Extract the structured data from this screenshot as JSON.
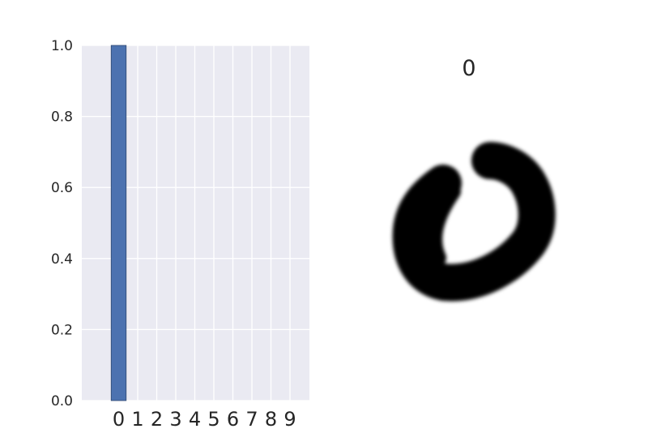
{
  "chart_data": [
    {
      "type": "bar",
      "categories": [
        "0",
        "1",
        "2",
        "3",
        "4",
        "5",
        "6",
        "7",
        "8",
        "9"
      ],
      "values": [
        1.0,
        0,
        0,
        0,
        0,
        0,
        0,
        0,
        0,
        0
      ],
      "yticks": [
        "0.0",
        "0.2",
        "0.4",
        "0.6",
        "0.8",
        "1.0"
      ],
      "ylim": [
        0,
        1.0
      ],
      "grid": true,
      "colors": {
        "bar": "#4c72b0",
        "bar_edge": "#2d4770",
        "plot_bg": "#eaeaf2",
        "grid": "#ffffff"
      }
    },
    {
      "type": "image",
      "title": "0",
      "image_content": "handwritten digit zero"
    }
  ]
}
